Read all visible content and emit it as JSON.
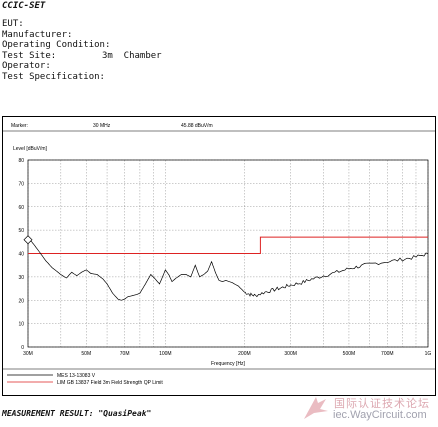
{
  "header": {
    "title": "CCIC-SET",
    "fields": [
      {
        "label": "EUT:",
        "value": ""
      },
      {
        "label": "Manufacturer:",
        "value": ""
      },
      {
        "label": "Operating Condition:",
        "value": ""
      },
      {
        "label": "Test Site:",
        "value": "3m  Chamber"
      },
      {
        "label": "Operator:",
        "value": ""
      },
      {
        "label": "Test Specification:",
        "value": ""
      }
    ]
  },
  "marker": {
    "label": "Marker:",
    "frequency": "30 MHz",
    "level": "45.88 dBuV/m"
  },
  "footer": {
    "measurement_result": "MEASUREMENT RESULT: \"QuasiPeak\""
  },
  "watermark": {
    "cn_text": "国际认证技术论坛",
    "en_text": "iec.WayCircuit.com"
  },
  "colors": {
    "limit_line": "#dd2222",
    "trace": "#000000",
    "grid": "#9a9a9a"
  },
  "chart_data": {
    "type": "line",
    "ylabel": "Level [dBuV/m]",
    "xlabel": "Frequency [Hz]",
    "x_scale": "log",
    "xlim_mhz": [
      30,
      1000
    ],
    "ylim": [
      0,
      80
    ],
    "y_ticks": [
      0,
      10,
      20,
      30,
      40,
      50,
      60,
      70,
      80
    ],
    "x_ticks": [
      {
        "value": 30,
        "label": "30M"
      },
      {
        "value": 50,
        "label": "50M"
      },
      {
        "value": 70,
        "label": "70M"
      },
      {
        "value": 100,
        "label": "100M"
      },
      {
        "value": 200,
        "label": "200M"
      },
      {
        "value": 300,
        "label": "300M"
      },
      {
        "value": 500,
        "label": "500M"
      },
      {
        "value": 700,
        "label": "700M"
      },
      {
        "value": 1000,
        "label": "1G"
      }
    ],
    "grid": true,
    "series": [
      {
        "name": "MES  13-13083 V",
        "x_mhz": [
          30,
          31,
          32,
          33,
          34,
          35,
          36,
          37,
          38,
          40,
          42,
          44,
          46,
          48,
          50,
          52,
          55,
          58,
          60,
          63,
          66,
          68,
          70,
          72,
          75,
          78,
          80,
          84,
          88,
          90,
          95,
          98,
          100,
          103,
          106,
          110,
          115,
          120,
          125,
          130,
          135,
          140,
          145,
          150,
          155,
          160,
          165,
          170,
          180,
          190,
          200,
          210,
          220,
          240,
          260,
          280,
          300,
          330,
          360,
          400,
          450,
          500,
          550,
          600,
          700,
          800,
          900,
          1000
        ],
        "values": [
          45.88,
          45,
          43,
          41,
          39,
          37,
          35.5,
          34,
          33,
          31,
          29.5,
          32,
          30.5,
          32,
          33,
          31.5,
          31,
          29,
          27,
          23,
          20.5,
          20,
          20.5,
          21.5,
          22,
          22.5,
          23,
          27,
          31,
          30,
          27,
          30.5,
          33,
          31,
          28,
          29.5,
          31,
          31,
          30,
          35,
          30,
          31,
          32.5,
          36.5,
          32,
          28.5,
          28,
          28.5,
          27.5,
          26,
          23.5,
          22.5,
          22,
          23.5,
          24.5,
          25.5,
          26.5,
          27.5,
          29,
          30.5,
          32,
          33.5,
          34.5,
          35.5,
          36.5,
          37.5,
          38.5,
          40
        ]
      },
      {
        "name": "LIM  GB 13837 Field 3m   Field Strength QP Limit",
        "x_mhz": [
          30,
          230,
          230,
          1000
        ],
        "values": [
          40,
          40,
          47,
          47
        ]
      }
    ]
  }
}
